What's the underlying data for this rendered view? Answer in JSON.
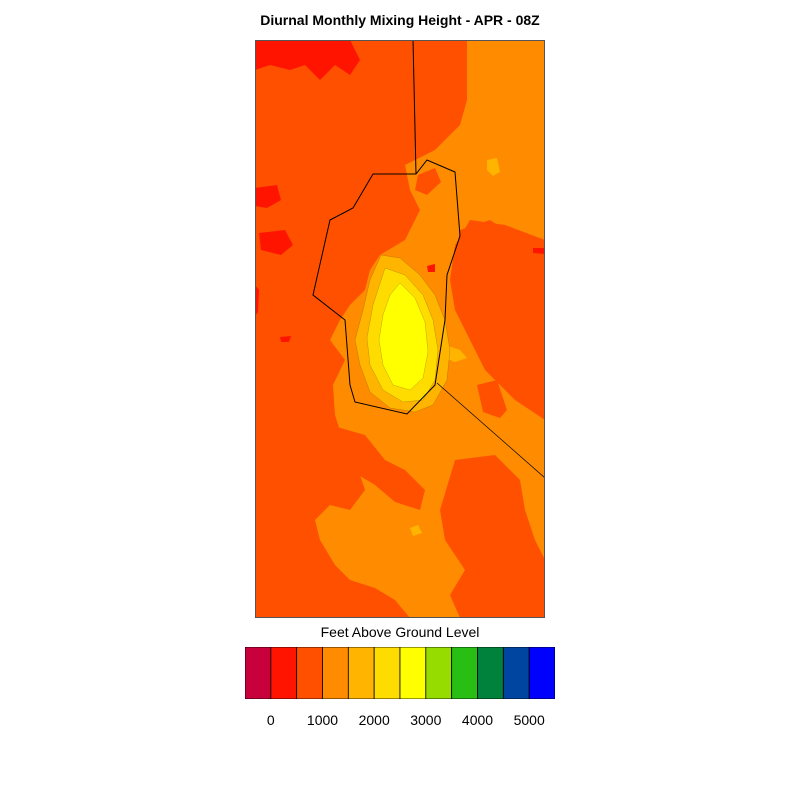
{
  "chart_data": {
    "type": "heatmap",
    "title": "Diurnal Monthly Mixing Height - APR - 08Z",
    "colorbar": {
      "label": "Feet Above Ground Level",
      "orientation": "horizontal",
      "placement": "bottom",
      "bins": [
        {
          "range": [
            -500,
            0
          ],
          "color": "#c8003c"
        },
        {
          "range": [
            0,
            500
          ],
          "color": "#ff1400"
        },
        {
          "range": [
            500,
            1000
          ],
          "color": "#ff5000"
        },
        {
          "range": [
            1000,
            1500
          ],
          "color": "#ff8c00"
        },
        {
          "range": [
            1500,
            2000
          ],
          "color": "#ffb400"
        },
        {
          "range": [
            2000,
            2500
          ],
          "color": "#ffdc00"
        },
        {
          "range": [
            2500,
            3000
          ],
          "color": "#ffff00"
        },
        {
          "range": [
            3000,
            3500
          ],
          "color": "#96dc00"
        },
        {
          "range": [
            3500,
            4000
          ],
          "color": "#28be14"
        },
        {
          "range": [
            4000,
            4500
          ],
          "color": "#00823c"
        },
        {
          "range": [
            4500,
            5000
          ],
          "color": "#0046a0"
        },
        {
          "range": [
            5000,
            5500
          ],
          "color": "#0000ff"
        }
      ],
      "tick_labels": [
        "0",
        "1000",
        "2000",
        "3000",
        "4000",
        "5000"
      ],
      "tick_values": [
        0,
        1000,
        2000,
        3000,
        4000,
        5000
      ]
    },
    "legend": "none",
    "grid": false
  }
}
